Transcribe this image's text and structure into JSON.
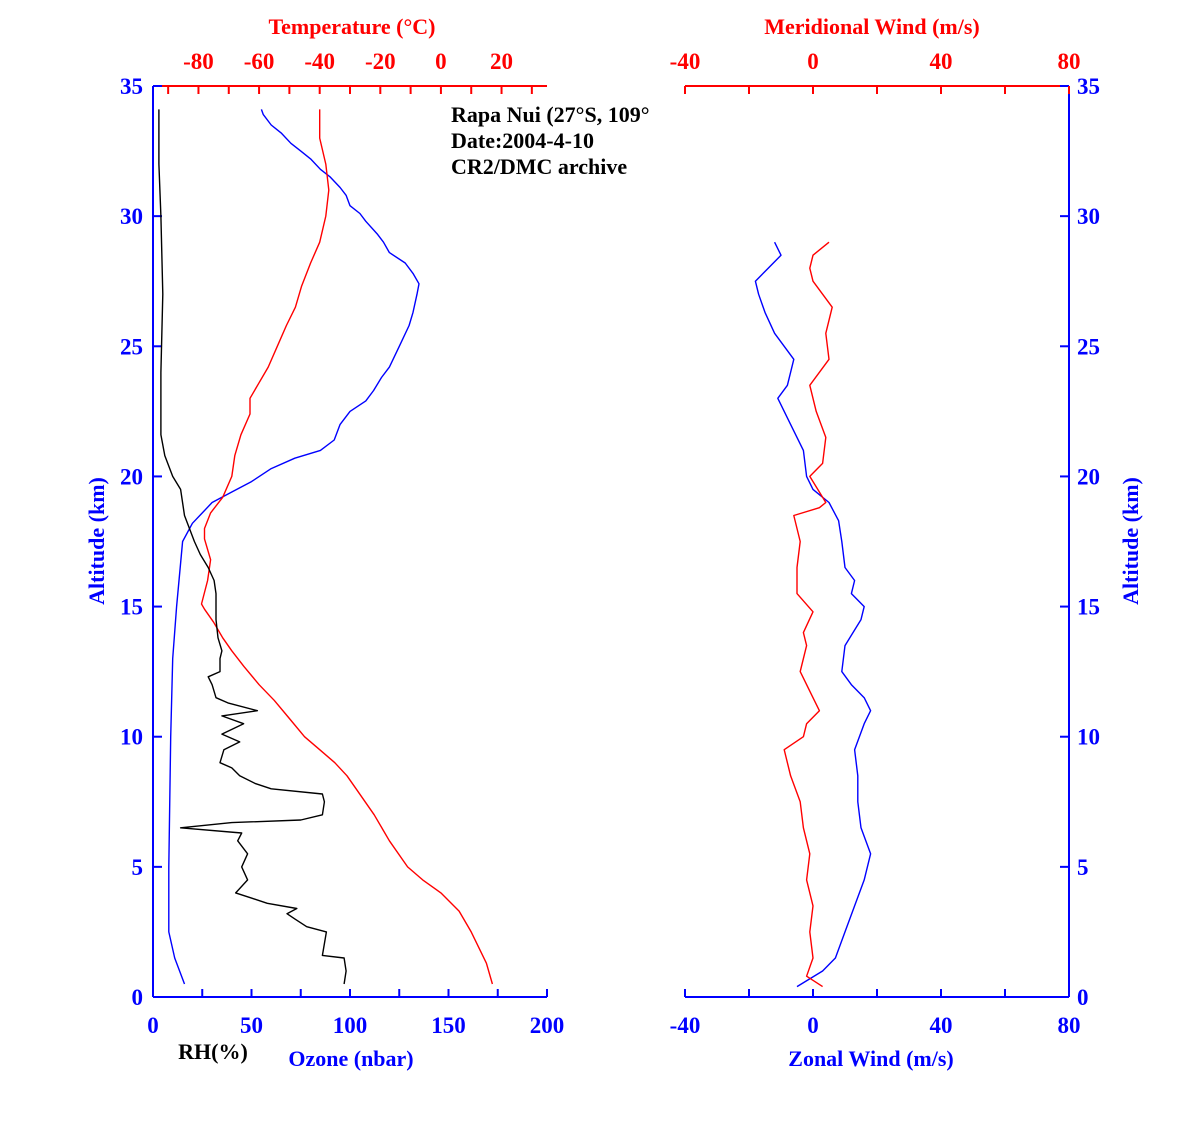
{
  "colors": {
    "blue": "#0000ff",
    "red": "#ff0000",
    "black": "#000000"
  },
  "annotation": {
    "station": "Rapa Nui (27°S, 109°",
    "date": "Date:2004-4-10",
    "archive": "CR2/DMC archive"
  },
  "chart_data": [
    {
      "type": "line",
      "xlabel_bottom": "Ozone (nbar)",
      "xlabel_bottom_extra": "RH(%)",
      "xlabel_top": "Temperature (°C)",
      "ylabel": "Altitude (km)",
      "xlim_bottom": [
        0,
        200
      ],
      "xlim_top": [
        -95,
        35
      ],
      "ylim": [
        0,
        35
      ],
      "xticks_bottom": [
        0,
        50,
        100,
        150,
        200
      ],
      "xticks_top": [
        -80,
        -60,
        -40,
        -20,
        0,
        20
      ],
      "yticks": [
        0,
        5,
        10,
        15,
        20,
        25,
        30,
        35
      ],
      "grid": false,
      "series": [
        {
          "name": "Ozone (nbar)",
          "axis": "bottom",
          "color": "#0000ff",
          "points": [
            [
              16,
              0.5
            ],
            [
              11,
              1.5
            ],
            [
              8,
              2.5
            ],
            [
              8,
              5
            ],
            [
              9,
              10
            ],
            [
              10,
              13
            ],
            [
              12,
              15
            ],
            [
              15,
              17.5
            ],
            [
              20,
              18.2
            ],
            [
              25,
              18.6
            ],
            [
              30,
              19.0
            ],
            [
              40,
              19.4
            ],
            [
              50,
              19.8
            ],
            [
              60,
              20.3
            ],
            [
              72,
              20.7
            ],
            [
              85,
              21.0
            ],
            [
              92,
              21.4
            ],
            [
              95,
              22.0
            ],
            [
              100,
              22.5
            ],
            [
              108,
              22.9
            ],
            [
              112,
              23.3
            ],
            [
              116,
              23.8
            ],
            [
              120,
              24.2
            ],
            [
              125,
              25.0
            ],
            [
              130,
              25.8
            ],
            [
              132,
              26.3
            ],
            [
              134,
              27.0
            ],
            [
              135,
              27.4
            ],
            [
              132,
              27.8
            ],
            [
              128,
              28.2
            ],
            [
              120,
              28.6
            ],
            [
              117,
              29.0
            ],
            [
              114,
              29.3
            ],
            [
              108,
              29.8
            ],
            [
              105,
              30.1
            ],
            [
              100,
              30.4
            ],
            [
              98,
              30.8
            ],
            [
              95,
              31.1
            ],
            [
              90,
              31.5
            ],
            [
              85,
              31.8
            ],
            [
              80,
              32.2
            ],
            [
              75,
              32.5
            ],
            [
              70,
              32.8
            ],
            [
              65,
              33.2
            ],
            [
              60,
              33.5
            ],
            [
              56,
              33.9
            ],
            [
              55,
              34.1
            ]
          ]
        },
        {
          "name": "Temperature (°C)",
          "axis": "top",
          "color": "#ff0000",
          "points": [
            [
              17,
              0.5
            ],
            [
              15,
              1.3
            ],
            [
              10,
              2.5
            ],
            [
              6,
              3.3
            ],
            [
              0,
              4.0
            ],
            [
              -6,
              4.5
            ],
            [
              -11,
              5.0
            ],
            [
              -17,
              6.0
            ],
            [
              -22,
              7.0
            ],
            [
              -28,
              8.0
            ],
            [
              -31,
              8.5
            ],
            [
              -35,
              9.0
            ],
            [
              -40,
              9.5
            ],
            [
              -45,
              10.0
            ],
            [
              -50,
              10.7
            ],
            [
              -55,
              11.4
            ],
            [
              -60,
              12.0
            ],
            [
              -65,
              12.7
            ],
            [
              -69,
              13.3
            ],
            [
              -72,
              13.8
            ],
            [
              -75,
              14.4
            ],
            [
              -78,
              14.9
            ],
            [
              -79,
              15.1
            ],
            [
              -77,
              16.0
            ],
            [
              -76,
              16.8
            ],
            [
              -78,
              17.6
            ],
            [
              -78,
              18.0
            ],
            [
              -76,
              18.6
            ],
            [
              -72,
              19.2
            ],
            [
              -69,
              20.0
            ],
            [
              -68,
              20.8
            ],
            [
              -66,
              21.6
            ],
            [
              -63,
              22.4
            ],
            [
              -63,
              23.0
            ],
            [
              -60,
              23.6
            ],
            [
              -57,
              24.2
            ],
            [
              -54,
              25.0
            ],
            [
              -51,
              25.8
            ],
            [
              -48,
              26.5
            ],
            [
              -46,
              27.3
            ],
            [
              -43,
              28.2
            ],
            [
              -40,
              29.0
            ],
            [
              -38,
              30.0
            ],
            [
              -37,
              31.0
            ],
            [
              -38,
              32.0
            ],
            [
              -40,
              33.0
            ],
            [
              -40,
              34.1
            ]
          ]
        },
        {
          "name": "RH(%)",
          "axis": "bottom",
          "color": "#000000",
          "points": [
            [
              97,
              0.5
            ],
            [
              98,
              1.0
            ],
            [
              97,
              1.5
            ],
            [
              86,
              1.6
            ],
            [
              88,
              2.5
            ],
            [
              78,
              2.7
            ],
            [
              72,
              3.0
            ],
            [
              68,
              3.2
            ],
            [
              73,
              3.4
            ],
            [
              58,
              3.6
            ],
            [
              50,
              3.8
            ],
            [
              42,
              4.0
            ],
            [
              48,
              4.5
            ],
            [
              45,
              5.0
            ],
            [
              48,
              5.5
            ],
            [
              43,
              6.0
            ],
            [
              45,
              6.3
            ],
            [
              14,
              6.5
            ],
            [
              40,
              6.7
            ],
            [
              75,
              6.8
            ],
            [
              86,
              7.0
            ],
            [
              87,
              7.5
            ],
            [
              86,
              7.8
            ],
            [
              60,
              8.0
            ],
            [
              52,
              8.2
            ],
            [
              44,
              8.5
            ],
            [
              40,
              8.8
            ],
            [
              34,
              9.0
            ],
            [
              36,
              9.5
            ],
            [
              44,
              9.8
            ],
            [
              35,
              10.1
            ],
            [
              46,
              10.5
            ],
            [
              35,
              10.8
            ],
            [
              53,
              11.0
            ],
            [
              38,
              11.3
            ],
            [
              32,
              11.5
            ],
            [
              30,
              12.0
            ],
            [
              28,
              12.3
            ],
            [
              34,
              12.5
            ],
            [
              34,
              13.0
            ],
            [
              35,
              13.3
            ],
            [
              33,
              13.8
            ],
            [
              32,
              14.5
            ],
            [
              32,
              15.5
            ],
            [
              31,
              16.0
            ],
            [
              28,
              16.5
            ],
            [
              24,
              17.0
            ],
            [
              21,
              17.5
            ],
            [
              16,
              18.5
            ],
            [
              14,
              19.5
            ],
            [
              10,
              20.0
            ],
            [
              6,
              20.8
            ],
            [
              4,
              21.6
            ],
            [
              4,
              24.0
            ],
            [
              5,
              27.0
            ],
            [
              4,
              30.0
            ],
            [
              3,
              32.0
            ],
            [
              3,
              34.1
            ]
          ]
        }
      ]
    },
    {
      "type": "line",
      "xlabel_bottom": "Zonal Wind (m/s)",
      "xlabel_top": "Meridional Wind (m/s)",
      "ylabel": "Altitude (km)",
      "xlim_bottom": [
        -40,
        80
      ],
      "xlim_top": [
        -40,
        80
      ],
      "ylim": [
        0,
        35
      ],
      "xticks_bottom": [
        -40,
        0,
        40,
        80
      ],
      "xticks_top": [
        -40,
        0,
        40,
        80
      ],
      "yticks": [
        0,
        5,
        10,
        15,
        20,
        25,
        30,
        35
      ],
      "grid": false,
      "series": [
        {
          "name": "Zonal Wind (m/s)",
          "axis": "bottom",
          "color": "#0000ff",
          "points": [
            [
              -5,
              0.4
            ],
            [
              3,
              1.0
            ],
            [
              7,
              1.5
            ],
            [
              10,
              2.5
            ],
            [
              13,
              3.5
            ],
            [
              16,
              4.5
            ],
            [
              18,
              5.5
            ],
            [
              15,
              6.5
            ],
            [
              14,
              7.5
            ],
            [
              14,
              8.5
            ],
            [
              13,
              9.5
            ],
            [
              16,
              10.5
            ],
            [
              18,
              11.0
            ],
            [
              16,
              11.5
            ],
            [
              12,
              12.0
            ],
            [
              9,
              12.5
            ],
            [
              10,
              13.5
            ],
            [
              15,
              14.5
            ],
            [
              16,
              15.0
            ],
            [
              12,
              15.5
            ],
            [
              13,
              16.0
            ],
            [
              10,
              16.5
            ],
            [
              9,
              17.5
            ],
            [
              8,
              18.3
            ],
            [
              5,
              19.0
            ],
            [
              0,
              19.5
            ],
            [
              -2,
              20.0
            ],
            [
              -3,
              21.0
            ],
            [
              -7,
              22.0
            ],
            [
              -11,
              23.0
            ],
            [
              -8,
              23.5
            ],
            [
              -6,
              24.5
            ],
            [
              -9,
              25.0
            ],
            [
              -12,
              25.5
            ],
            [
              -15,
              26.3
            ],
            [
              -17,
              27.0
            ],
            [
              -18,
              27.5
            ],
            [
              -14,
              28.0
            ],
            [
              -10,
              28.5
            ],
            [
              -12,
              29.0
            ]
          ]
        },
        {
          "name": "Meridional Wind (m/s)",
          "axis": "top",
          "color": "#ff0000",
          "points": [
            [
              3,
              0.4
            ],
            [
              -2,
              0.8
            ],
            [
              0,
              1.5
            ],
            [
              -1,
              2.5
            ],
            [
              0,
              3.5
            ],
            [
              -2,
              4.5
            ],
            [
              -1,
              5.5
            ],
            [
              -3,
              6.5
            ],
            [
              -4,
              7.5
            ],
            [
              -7,
              8.5
            ],
            [
              -9,
              9.5
            ],
            [
              -3,
              10.0
            ],
            [
              -2,
              10.5
            ],
            [
              2,
              11.0
            ],
            [
              0,
              11.5
            ],
            [
              -4,
              12.5
            ],
            [
              -2,
              13.5
            ],
            [
              -3,
              14.0
            ],
            [
              0,
              14.8
            ],
            [
              -5,
              15.5
            ],
            [
              -5,
              16.5
            ],
            [
              -4,
              17.5
            ],
            [
              -6,
              18.5
            ],
            [
              2,
              18.8
            ],
            [
              4,
              19.0
            ],
            [
              -1,
              20.0
            ],
            [
              3,
              20.5
            ],
            [
              4,
              21.5
            ],
            [
              1,
              22.5
            ],
            [
              -1,
              23.5
            ],
            [
              2,
              24.0
            ],
            [
              5,
              24.5
            ],
            [
              4,
              25.5
            ],
            [
              6,
              26.5
            ],
            [
              3,
              27.0
            ],
            [
              0,
              27.5
            ],
            [
              -1,
              28.0
            ],
            [
              0,
              28.5
            ],
            [
              5,
              29.0
            ]
          ]
        }
      ]
    }
  ]
}
